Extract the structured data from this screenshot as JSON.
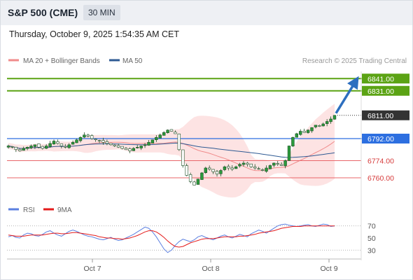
{
  "header": {
    "title": "S&P 500 (CME)",
    "timeframe": "30 MIN",
    "datetime": "Thursday, October 9, 2025 1:54:35 AM CET"
  },
  "legend": {
    "ma20": "MA 20 + Bollinger Bands",
    "ma50": "MA 50",
    "rsi": "RSI",
    "ma9": "9MA"
  },
  "credit": "Research © 2025 Trading Central",
  "colors": {
    "candle": "#2b9a3c",
    "ma20": "#f08b8b",
    "ma50": "#2e5a93",
    "bands": "#fde3e3",
    "target": "#5ba314",
    "pivot": "#2d6fe0",
    "support": "#e9666a",
    "current": "#333333",
    "rsi": "#5b7fe0",
    "rsi_ma": "#e41b1b",
    "arrow": "#2d6fbf"
  },
  "chart_data": [
    {
      "type": "candlestick",
      "title": "S&P 500 (CME)",
      "timeframe": "30 MIN",
      "x_ticks": [
        "Oct 7",
        "Oct 8",
        "Oct 9"
      ],
      "ylim": [
        6744,
        6848
      ],
      "levels": [
        {
          "value": 6841.0,
          "label": "6841.00",
          "kind": "target"
        },
        {
          "value": 6831.0,
          "label": "6831.00",
          "kind": "target"
        },
        {
          "value": 6811.0,
          "label": "6811.00",
          "kind": "current"
        },
        {
          "value": 6792.0,
          "label": "6792.00",
          "kind": "pivot"
        },
        {
          "value": 6774.0,
          "label": "6774.00",
          "kind": "support"
        },
        {
          "value": 6760.0,
          "label": "6760.00",
          "kind": "support"
        }
      ],
      "series": [
        {
          "name": "MA 20",
          "indicator": "moving average (20) with Bollinger Bands"
        },
        {
          "name": "MA 50",
          "indicator": "moving average (50)"
        }
      ],
      "close": [
        6786,
        6785,
        6783,
        6782,
        6784,
        6785,
        6786,
        6787,
        6785,
        6784,
        6786,
        6788,
        6790,
        6788,
        6786,
        6785,
        6787,
        6789,
        6791,
        6793,
        6795,
        6794,
        6792,
        6791,
        6790,
        6789,
        6788,
        6787,
        6786,
        6785,
        6784,
        6783,
        6782,
        6784,
        6785,
        6786,
        6787,
        6789,
        6791,
        6793,
        6795,
        6797,
        6799,
        6798,
        6796,
        6783,
        6770,
        6762,
        6757,
        6754,
        6759,
        6764,
        6768,
        6767,
        6765,
        6763,
        6766,
        6769,
        6768,
        6767,
        6769,
        6771,
        6772,
        6771,
        6769,
        6768,
        6767,
        6766,
        6768,
        6770,
        6772,
        6771,
        6770,
        6774,
        6786,
        6793,
        6796,
        6798,
        6797,
        6799,
        6801,
        6803,
        6802,
        6804,
        6806,
        6808,
        6811
      ],
      "projection": {
        "from": 6811,
        "to": 6841,
        "direction": "up"
      }
    },
    {
      "type": "line",
      "title": "RSI",
      "ylim": [
        20,
        80
      ],
      "y_ticks": [
        70,
        50,
        30
      ],
      "reference_levels": [
        70,
        30
      ],
      "series": [
        {
          "name": "RSI",
          "values": [
            52,
            54,
            51,
            50,
            55,
            58,
            57,
            54,
            53,
            56,
            60,
            62,
            58,
            55,
            53,
            57,
            61,
            63,
            61,
            58,
            55,
            53,
            52,
            50,
            48,
            47,
            49,
            51,
            48,
            46,
            47,
            50,
            53,
            56,
            60,
            64,
            68,
            66,
            60,
            52,
            42,
            32,
            26,
            30,
            38,
            44,
            48,
            46,
            44,
            47,
            52,
            54,
            51,
            49,
            47,
            50,
            53,
            55,
            52,
            50,
            53,
            56,
            54,
            52,
            57,
            60,
            63,
            61,
            58,
            62,
            66,
            70,
            72,
            73,
            71,
            70,
            69,
            70,
            71,
            72,
            70,
            69,
            71,
            73,
            72,
            69,
            70
          ]
        },
        {
          "name": "9MA",
          "values": [
            55,
            54,
            53,
            53,
            53,
            54,
            55,
            55,
            55,
            55,
            56,
            57,
            58,
            58,
            57,
            57,
            58,
            59,
            59,
            58,
            57,
            56,
            55,
            54,
            52,
            51,
            50,
            50,
            49,
            49,
            48,
            49,
            50,
            52,
            54,
            57,
            60,
            62,
            62,
            60,
            56,
            51,
            45,
            40,
            36,
            35,
            36,
            39,
            42,
            44,
            46,
            48,
            49,
            49,
            49,
            50,
            51,
            52,
            52,
            52,
            52,
            53,
            53,
            54,
            55,
            56,
            58,
            59,
            60,
            61,
            62,
            64,
            66,
            67,
            68,
            69,
            69,
            69,
            70,
            70,
            70,
            70,
            70,
            70,
            70,
            70,
            70
          ]
        }
      ]
    }
  ]
}
